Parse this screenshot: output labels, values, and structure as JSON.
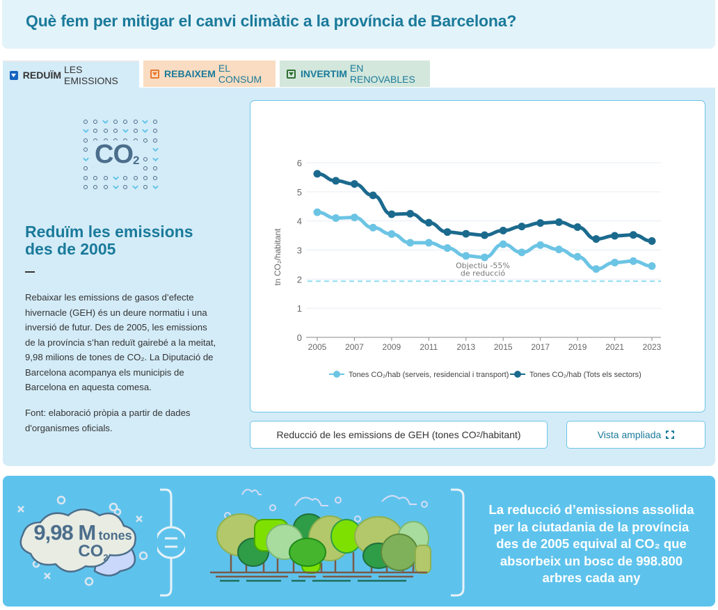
{
  "header": {
    "title": "Què fem per mitigar el canvi climàtic a la província de Barcelona?"
  },
  "tabs": [
    {
      "bold": "REDUÏM",
      "rest": "LES EMISSIONS",
      "active": true,
      "color": "#1565c0"
    },
    {
      "bold": "REBAIXEM",
      "rest": "EL CONSUM",
      "active": false,
      "color": "#e8772e"
    },
    {
      "bold": "INVERTIM",
      "rest": "EN RENOVABLES",
      "active": false,
      "color": "#2f6e2f"
    }
  ],
  "left": {
    "icon_label": "CO",
    "icon_sub": "2",
    "title": "Reduïm les emissions des de 2005",
    "body": "Rebaixar les emissions de gasos d’efecte hivernacle (GEH) és un deure normatiu i una inversió de futur. Des de 2005, les emissions de la província s’han reduït gairebé a la meitat, 9,98 milions de tones de CO₂. La Diputació de Barcelona acompanya els municipis de Barcelona en aquesta comesa.",
    "source": "Font: elaboració pròpia a partir de dades d'organismes oficials."
  },
  "buttons": {
    "chart_title_main": "Reducció de les emissions de GEH (tones CO",
    "chart_title_sub": "2",
    "chart_title_end": "/habitant)",
    "expand_label": "Vista ampliada"
  },
  "bottom": {
    "cloud_value": "9,98 M",
    "cloud_unit": "tones",
    "cloud_co2": "CO",
    "cloud_co2_sub": "2",
    "claim": "La reducció d’emissions assolida per la ciutadania de la província des de 2005 equival al CO₂ que absorbeix un bosc de 998.800 arbres cada any"
  },
  "colors": {
    "accent": "#1a7a9a",
    "series_light": "#6cc4e4",
    "series_dark": "#1b6a8e",
    "target_line": "#8adcf0"
  },
  "chart_data": {
    "type": "line",
    "title": "Reducció de les emissions de GEH (tones CO2/habitant)",
    "xlabel": "",
    "ylabel": "tn CO₂/habitant",
    "x": [
      2005,
      2006,
      2007,
      2008,
      2009,
      2010,
      2011,
      2012,
      2013,
      2014,
      2015,
      2016,
      2017,
      2018,
      2019,
      2020,
      2021,
      2022,
      2023
    ],
    "x_ticks": [
      2005,
      2007,
      2009,
      2011,
      2013,
      2015,
      2017,
      2019,
      2021,
      2023
    ],
    "ylim": [
      0,
      6
    ],
    "y_ticks": [
      0,
      1,
      2,
      3,
      4,
      5,
      6
    ],
    "grid": true,
    "legend_position": "bottom",
    "series": [
      {
        "name": "Tones CO₂/hab (serveis, residencial i transport)",
        "color": "#6cc4e4",
        "values": [
          4.3,
          4.1,
          4.12,
          3.77,
          3.55,
          3.25,
          3.25,
          3.07,
          2.8,
          2.75,
          3.2,
          2.92,
          3.17,
          3.02,
          2.77,
          2.35,
          2.57,
          2.62,
          2.45
        ]
      },
      {
        "name": "Tones CO₂/hab (Tots els sectors)",
        "color": "#1b6a8e",
        "values": [
          5.62,
          5.38,
          5.27,
          4.88,
          4.23,
          4.25,
          3.94,
          3.62,
          3.56,
          3.51,
          3.67,
          3.81,
          3.93,
          3.96,
          3.79,
          3.38,
          3.49,
          3.52,
          3.31
        ]
      }
    ],
    "reference_line": {
      "value": 1.93,
      "label_line1": "Objectiu -55%",
      "label_line2": "de reducció",
      "style": "dashed"
    }
  }
}
